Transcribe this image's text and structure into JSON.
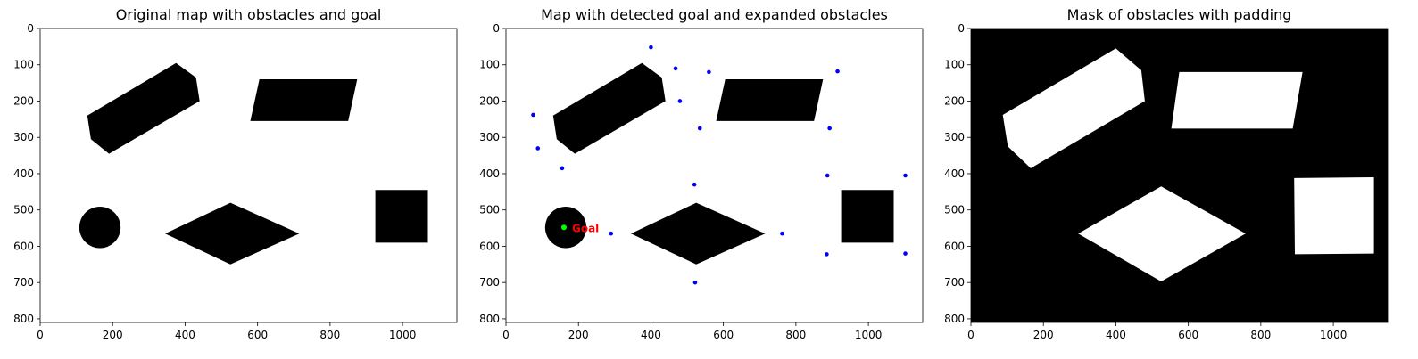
{
  "chart_data": [
    {
      "type": "map",
      "title": "Original map with obstacles and goal",
      "xlim": [
        0,
        1150
      ],
      "ylim": [
        810,
        0
      ],
      "xticks": [
        0,
        200,
        400,
        600,
        800,
        1000
      ],
      "yticks": [
        0,
        100,
        200,
        300,
        400,
        500,
        600,
        700,
        800
      ],
      "background": "#ffffff",
      "obstacle_color": "#000000",
      "obstacles": [
        {
          "name": "hexagon",
          "points": [
            [
              130,
              240
            ],
            [
              375,
              95
            ],
            [
              430,
              135
            ],
            [
              440,
              200
            ],
            [
              190,
              345
            ],
            [
              140,
              305
            ]
          ]
        },
        {
          "name": "parallelogram",
          "points": [
            [
              605,
              140
            ],
            [
              875,
              140
            ],
            [
              850,
              255
            ],
            [
              580,
              255
            ]
          ]
        },
        {
          "name": "circle",
          "cx": 165,
          "cy": 548,
          "r": 57
        },
        {
          "name": "diamond",
          "points": [
            [
              525,
              480
            ],
            [
              715,
              565
            ],
            [
              525,
              650
            ],
            [
              345,
              565
            ]
          ]
        },
        {
          "name": "square",
          "points": [
            [
              925,
              445
            ],
            [
              1070,
              445
            ],
            [
              1070,
              590
            ],
            [
              925,
              590
            ]
          ]
        }
      ]
    },
    {
      "type": "map",
      "title": "Map with detected goal and expanded obstacles",
      "xlim": [
        0,
        1150
      ],
      "ylim": [
        810,
        0
      ],
      "xticks": [
        0,
        200,
        400,
        600,
        800,
        1000
      ],
      "yticks": [
        0,
        100,
        200,
        300,
        400,
        500,
        600,
        700,
        800
      ],
      "background": "#ffffff",
      "obstacle_color": "#000000",
      "obstacles": [
        {
          "name": "hexagon",
          "points": [
            [
              130,
              240
            ],
            [
              375,
              95
            ],
            [
              430,
              135
            ],
            [
              440,
              200
            ],
            [
              190,
              345
            ],
            [
              140,
              305
            ]
          ]
        },
        {
          "name": "parallelogram",
          "points": [
            [
              605,
              140
            ],
            [
              875,
              140
            ],
            [
              850,
              255
            ],
            [
              580,
              255
            ]
          ]
        },
        {
          "name": "circle",
          "cx": 165,
          "cy": 548,
          "r": 57
        },
        {
          "name": "diamond",
          "points": [
            [
              525,
              480
            ],
            [
              715,
              565
            ],
            [
              525,
              650
            ],
            [
              345,
              565
            ]
          ]
        },
        {
          "name": "square",
          "points": [
            [
              925,
              445
            ],
            [
              1070,
              445
            ],
            [
              1070,
              590
            ],
            [
              925,
              590
            ]
          ]
        }
      ],
      "goal": {
        "x": 160,
        "y": 548,
        "label": "Goal",
        "color": "#00ff00",
        "label_color": "#ff0000"
      },
      "expanded_vertices_color": "#0000ff",
      "expanded_vertices": [
        [
          400,
          52
        ],
        [
          468,
          110
        ],
        [
          560,
          120
        ],
        [
          915,
          118
        ],
        [
          75,
          238
        ],
        [
          480,
          200
        ],
        [
          535,
          275
        ],
        [
          893,
          275
        ],
        [
          88,
          330
        ],
        [
          155,
          385
        ],
        [
          520,
          430
        ],
        [
          887,
          405
        ],
        [
          1102,
          405
        ],
        [
          290,
          565
        ],
        [
          762,
          565
        ],
        [
          885,
          622
        ],
        [
          1102,
          620
        ],
        [
          522,
          700
        ]
      ]
    },
    {
      "type": "mask",
      "title": "Mask of obstacles with padding",
      "xlim": [
        0,
        1150
      ],
      "ylim": [
        810,
        0
      ],
      "xticks": [
        0,
        200,
        400,
        600,
        800,
        1000
      ],
      "yticks": [
        0,
        100,
        200,
        300,
        400,
        500,
        600,
        700,
        800
      ],
      "background": "#000000",
      "mask_color": "#ffffff",
      "regions": [
        {
          "name": "hexagon",
          "points": [
            [
              88,
              238
            ],
            [
              400,
              55
            ],
            [
              470,
              115
            ],
            [
              480,
              200
            ],
            [
              165,
              385
            ],
            [
              102,
              325
            ]
          ]
        },
        {
          "name": "parallelogram",
          "points": [
            [
              575,
              120
            ],
            [
              915,
              120
            ],
            [
              888,
              276
            ],
            [
              553,
              276
            ]
          ]
        },
        {
          "name": "diamond",
          "points": [
            [
              525,
              435
            ],
            [
              758,
              565
            ],
            [
              525,
              697
            ],
            [
              296,
              565
            ]
          ]
        },
        {
          "name": "square",
          "points": [
            [
              892,
              412
            ],
            [
              1112,
              410
            ],
            [
              1112,
              620
            ],
            [
              894,
              622
            ]
          ]
        }
      ]
    }
  ]
}
